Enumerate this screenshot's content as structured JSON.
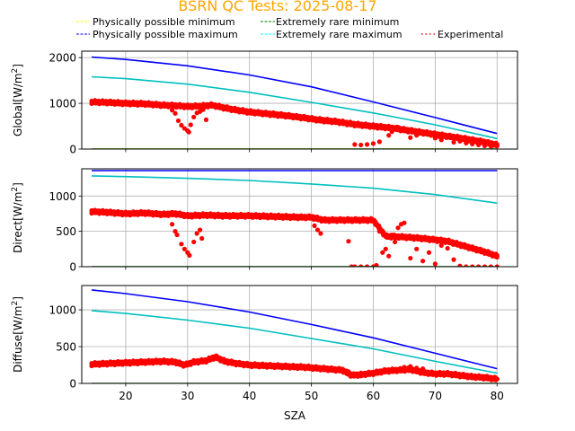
{
  "chart_data": {
    "type": "line",
    "title": "BSRN QC Tests: 2025-08-17",
    "title_color": "#ffa500",
    "xlabel": "SZA",
    "xlim": [
      12.9,
      83.3
    ],
    "xticks": [
      20,
      30,
      40,
      50,
      60,
      70,
      80
    ],
    "grid": true,
    "legend_placement": "top",
    "legend": [
      {
        "label": "Physically possible minimum",
        "color": "#ffff00",
        "style": "dashed"
      },
      {
        "label": "Extremely rare minimum",
        "color": "#008000",
        "style": "dashed"
      },
      {
        "label": "Physically possible maximum",
        "color": "#0000ff",
        "style": "dashed"
      },
      {
        "label": "Extremely rare maximum",
        "color": "#00ffff",
        "style": "dashed"
      },
      {
        "label": "Experimental",
        "color": "#ff0000",
        "style": "dotted"
      }
    ],
    "panels": [
      {
        "name": "global",
        "ylabel": "Global[W/m²]",
        "ylabel_main": "Global[W/m",
        "ylabel_sup": "2",
        "ylabel_end": "]",
        "ylim": [
          0,
          2140
        ],
        "yticks": [
          0,
          1000,
          2000
        ],
        "series": [
          {
            "name": "Physically possible maximum",
            "color": "#0000ff",
            "x": [
              14.5,
              20,
              30,
              40,
              50,
              60,
              70,
              80
            ],
            "y": [
              2010,
              1960,
              1820,
              1620,
              1360,
              1030,
              690,
              340
            ]
          },
          {
            "name": "Extremely rare maximum",
            "color": "#00bfbf",
            "x": [
              14.5,
              20,
              30,
              40,
              50,
              60,
              70,
              80
            ],
            "y": [
              1580,
              1540,
              1420,
              1240,
              1020,
              790,
              530,
              230
            ]
          },
          {
            "name": "Extremely rare minimum",
            "color": "#008000",
            "x": [
              14.5,
              80
            ],
            "y": [
              0,
              0
            ]
          },
          {
            "name": "Physically possible minimum",
            "color": "#ffff00",
            "x": [
              14.5,
              80
            ],
            "y": [
              -4,
              -4
            ]
          }
        ],
        "experimental": {
          "main_x": [
            14.5,
            17,
            20,
            23,
            26,
            28,
            30,
            32,
            34,
            36,
            38,
            40,
            43,
            46,
            49,
            51,
            54,
            57,
            60,
            63,
            66,
            69,
            72,
            75,
            78,
            80
          ],
          "main_y": [
            1030,
            1020,
            1000,
            990,
            960,
            950,
            930,
            940,
            960,
            900,
            850,
            810,
            770,
            730,
            680,
            640,
            600,
            540,
            500,
            460,
            400,
            340,
            280,
            220,
            150,
            90
          ],
          "extra_x": [
            27.5,
            28,
            28.5,
            29,
            29.5,
            30,
            30.2,
            30.5,
            31,
            31.5,
            32,
            32.5,
            33,
            57,
            58,
            59,
            60,
            61,
            62,
            62.5,
            63,
            64,
            65,
            66,
            67,
            68,
            69,
            70,
            71,
            72,
            73,
            74,
            75,
            76,
            77,
            78,
            79
          ],
          "extra_y": [
            850,
            780,
            620,
            520,
            450,
            400,
            370,
            530,
            700,
            790,
            820,
            860,
            640,
            100,
            90,
            100,
            120,
            160,
            450,
            300,
            380,
            480,
            420,
            250,
            300,
            380,
            320,
            240,
            200,
            260,
            150,
            170,
            130,
            110,
            90,
            70,
            60
          ]
        }
      },
      {
        "name": "direct",
        "ylabel": "Direct[W/m²]",
        "ylabel_main": "Direct[W/m",
        "ylabel_sup": "2",
        "ylabel_end": "]",
        "ylim": [
          0,
          1385
        ],
        "yticks": [
          0,
          500,
          1000
        ],
        "series": [
          {
            "name": "Physically possible maximum",
            "color": "#0000ff",
            "x": [
              14.5,
              80
            ],
            "y": [
              1360,
              1360
            ]
          },
          {
            "name": "Extremely rare maximum",
            "color": "#00bfbf",
            "x": [
              14.5,
              20,
              30,
              40,
              50,
              60,
              70,
              80
            ],
            "y": [
              1285,
              1275,
              1250,
              1220,
              1170,
              1110,
              1020,
              900
            ]
          },
          {
            "name": "Extremely rare minimum",
            "color": "#008000",
            "x": [
              14.5,
              80
            ],
            "y": [
              0,
              0
            ]
          },
          {
            "name": "Physically possible minimum",
            "color": "#ffff00",
            "x": [
              14.5,
              80
            ],
            "y": [
              -4,
              -4
            ]
          }
        ],
        "experimental": {
          "main_x": [
            14.5,
            17,
            20,
            23,
            26,
            28,
            30,
            33,
            36,
            40,
            44,
            48,
            50,
            52,
            55,
            58,
            60,
            62,
            65,
            68,
            70,
            72,
            74,
            76,
            78,
            80
          ],
          "main_y": [
            780,
            770,
            750,
            760,
            740,
            750,
            720,
            730,
            720,
            720,
            710,
            700,
            700,
            660,
            660,
            660,
            660,
            430,
            420,
            400,
            380,
            360,
            310,
            260,
            210,
            150
          ],
          "extra_x": [
            27.5,
            28,
            28.3,
            29,
            29.5,
            30,
            30.3,
            31,
            31.5,
            32,
            32.3,
            50.5,
            51,
            51.5,
            56,
            56.5,
            57,
            58,
            59,
            60,
            60.5,
            61,
            61.5,
            62,
            62.5,
            63,
            63.5,
            64,
            64.5,
            65,
            66,
            67,
            68,
            69,
            70,
            71,
            72,
            73,
            74,
            75,
            76,
            77,
            78,
            79,
            80
          ],
          "extra_y": [
            600,
            500,
            450,
            320,
            250,
            200,
            160,
            350,
            470,
            520,
            400,
            580,
            520,
            470,
            360,
            0,
            0,
            0,
            0,
            0,
            20,
            500,
            200,
            250,
            150,
            450,
            350,
            550,
            600,
            620,
            120,
            250,
            80,
            200,
            40,
            300,
            260,
            100,
            10,
            0,
            0,
            0,
            0,
            0,
            0
          ]
        }
      },
      {
        "name": "diffuse",
        "ylabel": "Diffuse[W/m²]",
        "ylabel_main": "Diffuse[W/m",
        "ylabel_sup": "2",
        "ylabel_end": "]",
        "ylim": [
          0,
          1330
        ],
        "yticks": [
          0,
          500,
          1000
        ],
        "series": [
          {
            "name": "Physically possible maximum",
            "color": "#0000ff",
            "x": [
              14.5,
              20,
              30,
              40,
              50,
              60,
              70,
              80
            ],
            "y": [
              1270,
              1220,
              1110,
              970,
              800,
              620,
              410,
              200
            ]
          },
          {
            "name": "Extremely rare maximum",
            "color": "#00bfbf",
            "x": [
              14.5,
              20,
              30,
              40,
              50,
              60,
              70,
              80
            ],
            "y": [
              990,
              950,
              860,
              750,
              610,
              470,
              300,
              140
            ]
          },
          {
            "name": "Extremely rare minimum",
            "color": "#008000",
            "x": [
              14.5,
              80
            ],
            "y": [
              0,
              0
            ]
          },
          {
            "name": "Physically possible minimum",
            "color": "#ffff00",
            "x": [
              14.5,
              80
            ],
            "y": [
              -4,
              -4
            ]
          }
        ],
        "experimental": {
          "main_x": [
            14.5,
            17,
            20,
            23,
            26,
            28,
            29.5,
            31,
            33,
            34.5,
            36,
            38,
            40,
            43,
            46,
            49,
            52,
            55,
            56.5,
            58,
            60,
            62,
            64,
            66,
            68,
            70,
            72,
            74,
            76,
            78,
            80
          ],
          "main_y": [
            260,
            270,
            280,
            290,
            300,
            290,
            250,
            290,
            310,
            360,
            300,
            270,
            250,
            240,
            230,
            220,
            200,
            180,
            110,
            120,
            140,
            170,
            180,
            190,
            150,
            130,
            130,
            110,
            90,
            80,
            60
          ],
          "extra_x": [
            33.5,
            34,
            34.5,
            35,
            35.5,
            56,
            57,
            58,
            65,
            66,
            67,
            68
          ],
          "extra_y": [
            330,
            350,
            370,
            350,
            320,
            160,
            130,
            100,
            220,
            230,
            210,
            200
          ]
        }
      }
    ]
  }
}
